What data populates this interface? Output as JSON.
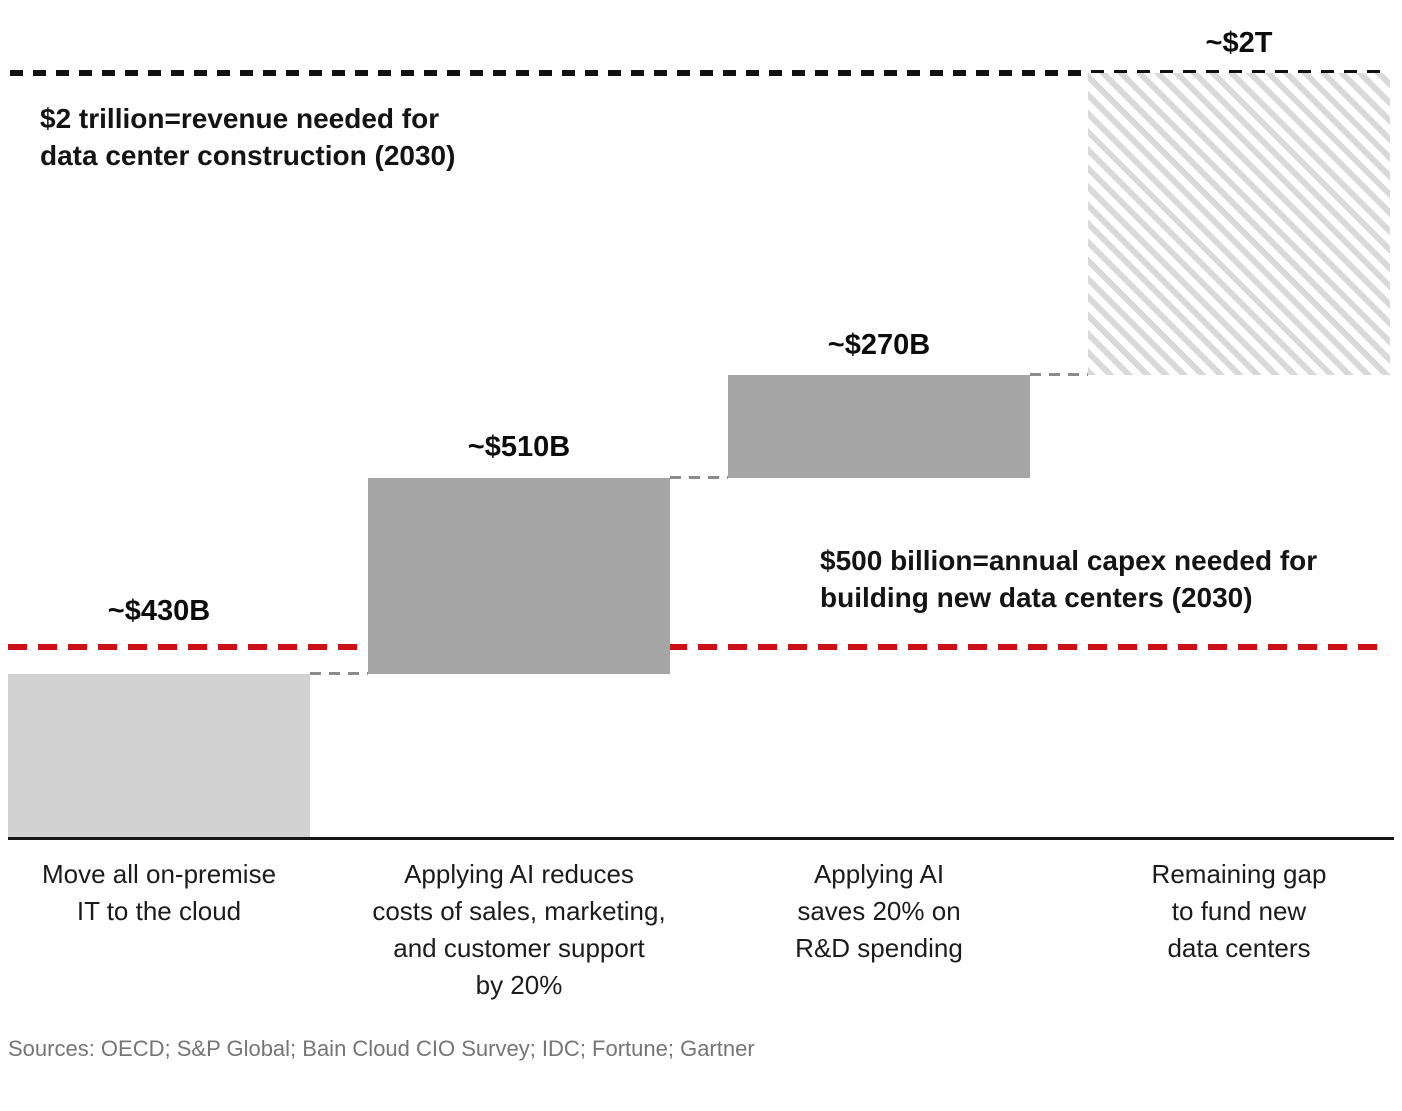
{
  "chart_data": {
    "type": "bar",
    "subtype": "waterfall",
    "unit": "USD billions",
    "value_axis_max": 2000,
    "grid": false,
    "bars": [
      {
        "label": "Move all on-premise\nIT to the cloud",
        "value_label": "~$430B",
        "start": 0,
        "value": 430,
        "fill": "light-gray"
      },
      {
        "label": "Applying AI reduces\ncosts of sales, marketing,\nand customer support\nby 20%",
        "value_label": "~$510B",
        "start": 430,
        "value": 510,
        "fill": "mid-gray"
      },
      {
        "label": "Applying AI\nsaves 20% on\nR&D spending",
        "value_label": "~$270B",
        "start": 940,
        "value": 270,
        "fill": "mid-gray"
      },
      {
        "label": "Remaining gap\nto fund new\ndata centers",
        "value_label": "~$2T",
        "start": 1210,
        "value": 790,
        "fill": "diagonal-hatch",
        "label_at_line": true
      }
    ],
    "reference_lines": [
      {
        "value": 2000,
        "style": "black-dashed",
        "annotation": "$2 trillion=revenue needed for\ndata center construction (2030)"
      },
      {
        "value": 500,
        "style": "red-dashed",
        "annotation": "$500 billion=annual capex needed for\nbuilding new data centers (2030)"
      }
    ],
    "source_note": "Sources: OECD; S&P Global; Bain Cloud CIO Survey; IDC; Fortune; Gartner"
  },
  "colors": {
    "bar_light": "#d2d2d2",
    "bar_mid": "#a5a5a5",
    "hatch_stripe": "#d9d9d9",
    "target_line": "#111111",
    "capex_line": "#cc1016",
    "text": "#141414",
    "source_text": "#757575"
  }
}
